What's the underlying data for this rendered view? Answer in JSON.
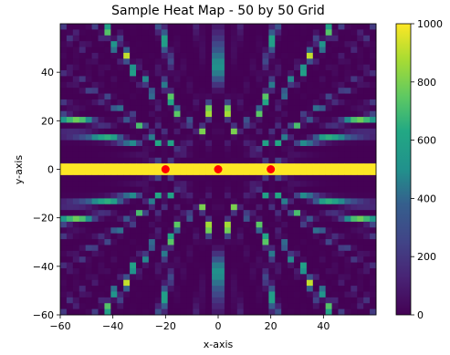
{
  "chart_data": {
    "type": "heatmap",
    "title": "Sample Heat Map - 50 by 50 Grid",
    "xlabel": "x-axis",
    "ylabel": "y-axis",
    "grid_size": [
      50,
      50
    ],
    "xlim": [
      -60,
      60
    ],
    "ylim": [
      -60,
      60
    ],
    "xticks": [
      -60,
      -40,
      -20,
      0,
      20,
      40
    ],
    "yticks": [
      -60,
      -40,
      -20,
      0,
      20,
      40
    ],
    "colorbar": {
      "range": [
        0,
        1000
      ],
      "ticks": [
        0,
        200,
        400,
        600,
        800,
        1000
      ],
      "colormap": "viridis"
    },
    "pattern": {
      "description_in_data_units": "interference pattern of circular rings around three sources on the x-axis",
      "sources_x": [
        -20,
        0,
        20
      ],
      "sources_y": [
        0,
        0,
        0
      ]
    },
    "markers": {
      "color": "#ff0000",
      "points": [
        {
          "x": -20,
          "y": 0
        },
        {
          "x": 0,
          "y": 0
        },
        {
          "x": 20,
          "y": 0
        }
      ]
    },
    "horizontal_band": {
      "y": 0,
      "value": 1000
    }
  }
}
